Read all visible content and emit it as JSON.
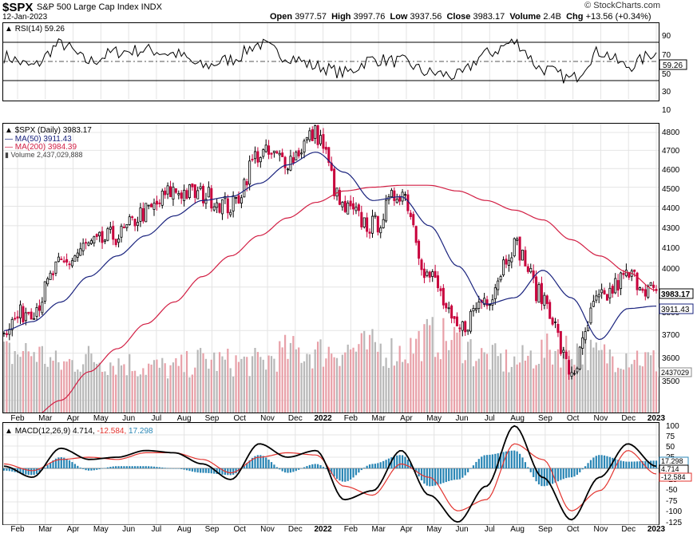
{
  "header": {
    "symbol": "$SPX",
    "name": "S&P 500 Large Cap Index  INDX",
    "date": "12-Jan-2023",
    "open_label": "Open",
    "open": "3977.57",
    "high_label": "High",
    "high": "3997.76",
    "low_label": "Low",
    "low": "3937.56",
    "close_label": "Close",
    "close": "3983.17",
    "volume_label": "Volume",
    "volume": "2.4B",
    "chg_label": "Chg",
    "chg": "+13.56 (+0.34%)",
    "watermark": "© StockCharts.com"
  },
  "rsi_panel": {
    "label": "RSI(14) 59.26",
    "value_tag": "59.26",
    "ticks": [
      "90",
      "70",
      "50",
      "30",
      "10"
    ]
  },
  "price_panel": {
    "legend": {
      "price": "$SPX (Daily) 3983.17",
      "ma50": "MA(50) 3911.43",
      "ma200": "MA(200) 3984.39",
      "volume": "Volume 2,437,029,888"
    },
    "ticks": [
      "4800",
      "4700",
      "4600",
      "4500",
      "4400",
      "4300",
      "4100",
      "4000",
      "3800",
      "3700",
      "3600",
      "3500"
    ],
    "tags": {
      "price": "3983.17",
      "ma50": "3911.43",
      "volume": "2437029"
    }
  },
  "macd_panel": {
    "label_name": "MACD(12,26,9)",
    "macd": "4.714,",
    "signal": "-12.584,",
    "hist": "17.298",
    "ticks": [
      "100",
      "75",
      "50",
      "25",
      "-25",
      "-50",
      "-75",
      "-100",
      "-125"
    ],
    "tags": {
      "hist": "17.298",
      "macd": "4.714",
      "signal": "-12.584"
    }
  },
  "x_axis": {
    "labels": [
      "Feb",
      "Mar",
      "Apr",
      "May",
      "Jun",
      "Jul",
      "Aug",
      "Sep",
      "Oct",
      "Nov",
      "Dec",
      "2022",
      "Feb",
      "Mar",
      "Apr",
      "May",
      "Jun",
      "Jul",
      "Aug",
      "Sep",
      "Oct",
      "Nov",
      "Dec",
      "2023"
    ],
    "bold": [
      "2022",
      "2023"
    ]
  },
  "colors": {
    "price_up": "#000000",
    "price_down": "#c8003c",
    "ma50": "#1a237e",
    "ma200": "#d21f44",
    "rsi": "#000000",
    "macd": "#000000",
    "signal": "#e3342f",
    "hist": "#2a86b5",
    "volume_up": "#b8b8b8",
    "volume_down": "#e8a0a8"
  },
  "chart_data": [
    {
      "type": "line",
      "title": "RSI(14)",
      "x": [
        "2021-02",
        "2021-03",
        "2021-04",
        "2021-05",
        "2021-06",
        "2021-07",
        "2021-08",
        "2021-09",
        "2021-10",
        "2021-11",
        "2021-12",
        "2022-01",
        "2022-02",
        "2022-03",
        "2022-04",
        "2022-05",
        "2022-06",
        "2022-07",
        "2022-08",
        "2022-09",
        "2022-10",
        "2022-11",
        "2022-12",
        "2023-01"
      ],
      "series": [
        {
          "name": "RSI(14)",
          "values": [
            55,
            45,
            68,
            50,
            60,
            62,
            58,
            45,
            52,
            68,
            55,
            45,
            38,
            52,
            50,
            38,
            35,
            58,
            70,
            42,
            32,
            60,
            45,
            59.26
          ]
        }
      ],
      "ylim": [
        10,
        90
      ]
    },
    {
      "type": "line",
      "title": "$SPX (Daily)",
      "x": [
        "2021-02",
        "2021-03",
        "2021-04",
        "2021-05",
        "2021-06",
        "2021-07",
        "2021-08",
        "2021-09",
        "2021-10",
        "2021-11",
        "2021-12",
        "2022-01",
        "2022-02",
        "2022-03",
        "2022-04",
        "2022-05",
        "2022-06",
        "2022-07",
        "2022-08",
        "2022-09",
        "2022-10",
        "2022-11",
        "2022-12",
        "2023-01"
      ],
      "series": [
        {
          "name": "$SPX",
          "values": [
            3820,
            3900,
            4100,
            4200,
            4250,
            4370,
            4480,
            4460,
            4400,
            4680,
            4650,
            4790,
            4380,
            4300,
            4480,
            4050,
            3800,
            3950,
            4200,
            3950,
            3620,
            3940,
            4050,
            3983.17
          ]
        },
        {
          "name": "MA(50)",
          "values": [
            3800,
            3840,
            3930,
            4050,
            4150,
            4250,
            4350,
            4430,
            4450,
            4520,
            4620,
            4690,
            4580,
            4430,
            4450,
            4300,
            4100,
            3920,
            3950,
            4080,
            3950,
            3760,
            3900,
            3911.43
          ]
        },
        {
          "name": "MA(200)",
          "values": [
            3350,
            3430,
            3500,
            3620,
            3720,
            3830,
            3930,
            4050,
            4150,
            4250,
            4340,
            4420,
            4480,
            4500,
            4510,
            4510,
            4480,
            4430,
            4380,
            4330,
            4230,
            4150,
            4070,
            3984.39
          ]
        }
      ],
      "ylim": [
        3450,
        4850
      ],
      "log_scale": true
    },
    {
      "type": "bar",
      "title": "Volume",
      "x": [
        "2021-02",
        "2021-03",
        "2021-04",
        "2021-05",
        "2021-06",
        "2021-07",
        "2021-08",
        "2021-09",
        "2021-10",
        "2021-11",
        "2021-12",
        "2022-01",
        "2022-02",
        "2022-03",
        "2022-04",
        "2022-05",
        "2022-06",
        "2022-07",
        "2022-08",
        "2022-09",
        "2022-10",
        "2022-11",
        "2022-12",
        "2023-01"
      ],
      "values": [
        2800000000.0,
        2900000000.0,
        2300000000.0,
        2600000000.0,
        2400000000.0,
        2200000000.0,
        2100000000.0,
        2500000000.0,
        2400000000.0,
        2400000000.0,
        2900000000.0,
        2900000000.0,
        3000000000.0,
        3100000000.0,
        2900000000.0,
        3600000000.0,
        3400000000.0,
        2600000000.0,
        2400000000.0,
        2900000000.0,
        3100000000.0,
        2700000000.0,
        2800000000.0,
        2437029888
      ]
    },
    {
      "type": "line",
      "title": "MACD(12,26,9)",
      "x": [
        "2021-02",
        "2021-03",
        "2021-04",
        "2021-05",
        "2021-06",
        "2021-07",
        "2021-08",
        "2021-09",
        "2021-10",
        "2021-11",
        "2021-12",
        "2022-01",
        "2022-02",
        "2022-03",
        "2022-04",
        "2022-05",
        "2022-06",
        "2022-07",
        "2022-08",
        "2022-09",
        "2022-10",
        "2022-11",
        "2022-12",
        "2023-01"
      ],
      "series": [
        {
          "name": "MACD",
          "values": [
            5,
            -20,
            45,
            20,
            25,
            40,
            35,
            10,
            -25,
            55,
            25,
            40,
            -70,
            -50,
            40,
            -60,
            -120,
            -40,
            95,
            -20,
            -115,
            -20,
            55,
            4.714
          ]
        },
        {
          "name": "Signal",
          "values": [
            10,
            -5,
            20,
            25,
            20,
            35,
            35,
            20,
            -10,
            25,
            35,
            30,
            -40,
            -60,
            10,
            -20,
            -95,
            -70,
            55,
            20,
            -95,
            -50,
            40,
            -12.584
          ]
        },
        {
          "name": "Histogram",
          "values": [
            -5,
            -15,
            25,
            -5,
            5,
            5,
            0,
            -10,
            -15,
            30,
            -10,
            10,
            -30,
            10,
            30,
            -40,
            -25,
            30,
            40,
            -40,
            -20,
            30,
            15,
            17.298
          ]
        }
      ],
      "ylim": [
        -125,
        100
      ]
    }
  ]
}
